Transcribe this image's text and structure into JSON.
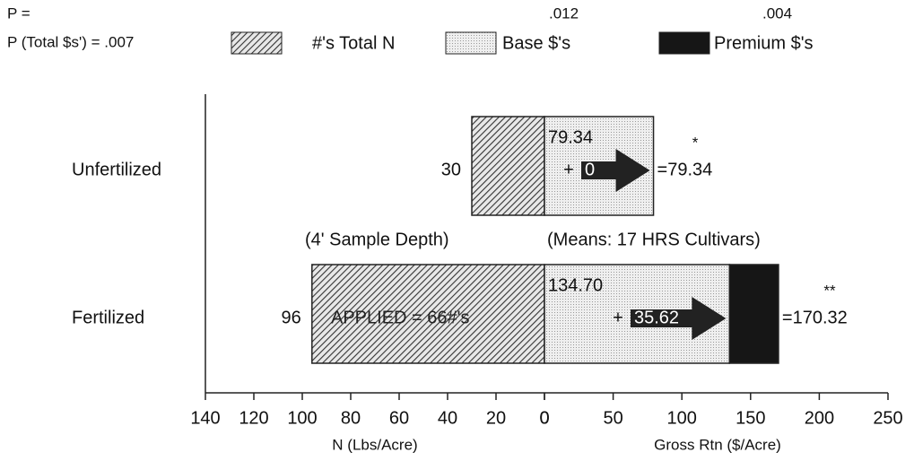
{
  "chart_data": {
    "type": "diverging_bar",
    "categories": [
      "Unfertilized",
      "Fertilized"
    ],
    "series": [
      {
        "name": "#'s Total N",
        "color": "#555555",
        "values": [
          30,
          96
        ]
      },
      {
        "name": "Base $'s",
        "color": "#e4e4e4",
        "values": [
          79.34,
          134.7
        ],
        "value_labels": [
          "79.34",
          "134.70"
        ]
      },
      {
        "name": "Premium $'s",
        "color": "#161616",
        "values": [
          0,
          35.62
        ]
      }
    ],
    "totals": {
      "values": [
        79.34,
        170.32
      ],
      "value_labels": [
        "=79.34",
        "=170.32"
      ]
    },
    "operator": "+",
    "significance": [
      "*",
      "**"
    ],
    "xlabel": "N (Lbs/Acre)",
    "xlim": [
      0,
      140
    ],
    "xticks": [
      0,
      20,
      40,
      60,
      80,
      100,
      120,
      140
    ],
    "x2label": "Gross Rtn ($/Acre)",
    "x2lim": [
      0,
      250
    ],
    "x2ticks": [
      0,
      50,
      100,
      150,
      200,
      250
    ],
    "stats": {
      "p": "P =",
      "p_base": ".012",
      "p_premium": ".004",
      "p_total": "P (Total $s') = .007"
    },
    "annotations": [
      "(4' Sample Depth)",
      "(Means: 17 HRS Cultivars)",
      "APPLIED = 66#'s"
    ]
  }
}
